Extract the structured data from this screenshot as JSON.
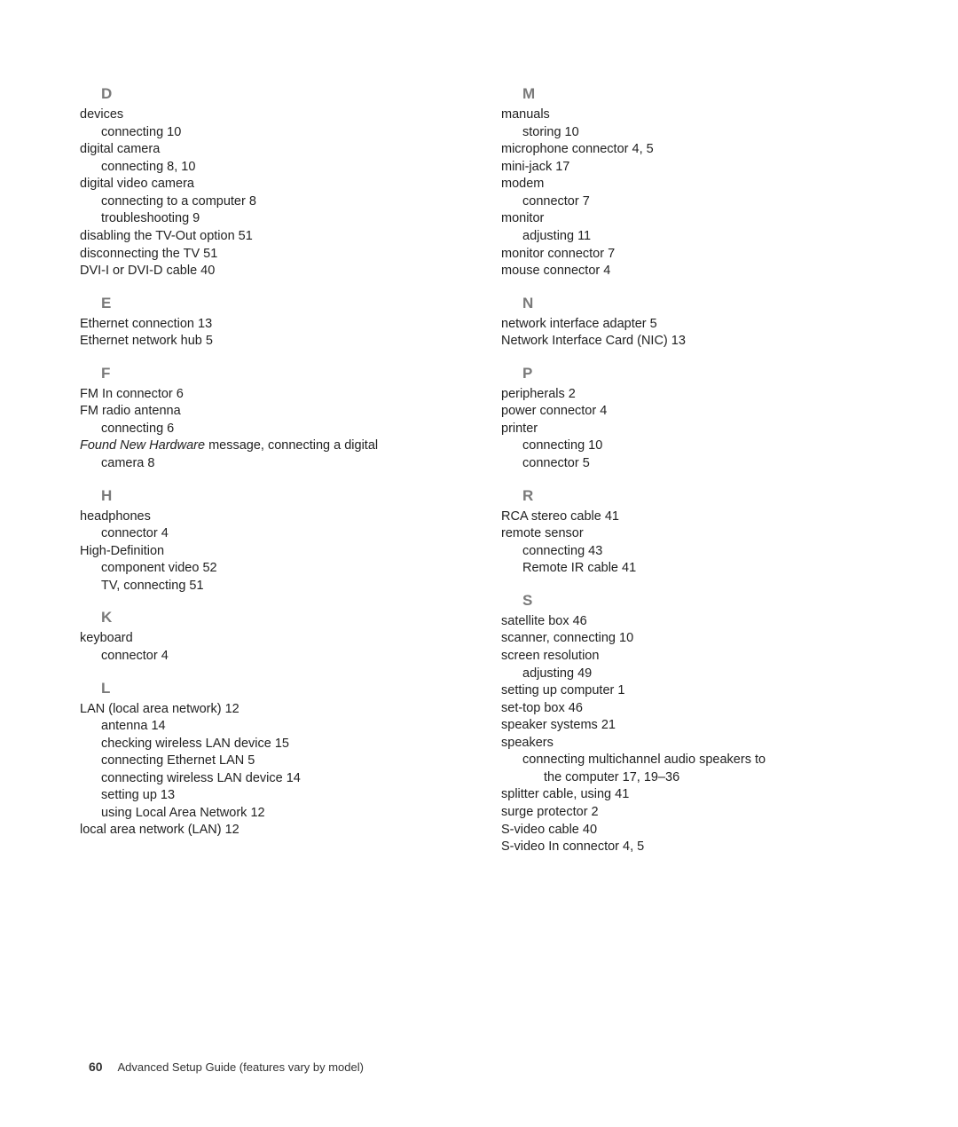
{
  "left": [
    {
      "type": "letter",
      "text": "D"
    },
    {
      "type": "entry",
      "level": 0,
      "text": "devices"
    },
    {
      "type": "entry",
      "level": 1,
      "text": "connecting 10"
    },
    {
      "type": "entry",
      "level": 0,
      "text": "digital camera"
    },
    {
      "type": "entry",
      "level": 1,
      "text": "connecting 8, 10"
    },
    {
      "type": "entry",
      "level": 0,
      "text": "digital video camera"
    },
    {
      "type": "entry",
      "level": 1,
      "text": "connecting to a computer 8"
    },
    {
      "type": "entry",
      "level": 1,
      "text": "troubleshooting 9"
    },
    {
      "type": "entry",
      "level": 0,
      "text": "disabling the TV-Out option 51"
    },
    {
      "type": "entry",
      "level": 0,
      "text": "disconnecting the TV 51"
    },
    {
      "type": "entry",
      "level": 0,
      "text": "DVI-I or DVI-D cable 40"
    },
    {
      "type": "letter",
      "text": "E"
    },
    {
      "type": "entry",
      "level": 0,
      "text": "Ethernet connection 13"
    },
    {
      "type": "entry",
      "level": 0,
      "text": "Ethernet network hub 5"
    },
    {
      "type": "letter",
      "text": "F"
    },
    {
      "type": "entry",
      "level": 0,
      "text": "FM In connector 6"
    },
    {
      "type": "entry",
      "level": 0,
      "text": "FM radio antenna"
    },
    {
      "type": "entry",
      "level": 1,
      "text": "connecting 6"
    },
    {
      "type": "entry",
      "level": 0,
      "italicPrefix": "Found New Hardware",
      "text": " message, connecting a digital"
    },
    {
      "type": "entry",
      "level": 1,
      "text": "camera 8"
    },
    {
      "type": "letter",
      "text": "H"
    },
    {
      "type": "entry",
      "level": 0,
      "text": "headphones"
    },
    {
      "type": "entry",
      "level": 1,
      "text": "connector 4"
    },
    {
      "type": "entry",
      "level": 0,
      "text": "High-Definition"
    },
    {
      "type": "entry",
      "level": 1,
      "text": "component video 52"
    },
    {
      "type": "entry",
      "level": 1,
      "text": "TV, connecting 51"
    },
    {
      "type": "letter",
      "text": "K"
    },
    {
      "type": "entry",
      "level": 0,
      "text": "keyboard"
    },
    {
      "type": "entry",
      "level": 1,
      "text": "connector 4"
    },
    {
      "type": "letter",
      "text": "L"
    },
    {
      "type": "entry",
      "level": 0,
      "text": "LAN (local area network) 12"
    },
    {
      "type": "entry",
      "level": 1,
      "text": "antenna 14"
    },
    {
      "type": "entry",
      "level": 1,
      "text": "checking wireless LAN device 15"
    },
    {
      "type": "entry",
      "level": 1,
      "text": "connecting Ethernet LAN 5"
    },
    {
      "type": "entry",
      "level": 1,
      "text": "connecting wireless LAN device 14"
    },
    {
      "type": "entry",
      "level": 1,
      "text": "setting up 13"
    },
    {
      "type": "entry",
      "level": 1,
      "text": "using Local Area Network 12"
    },
    {
      "type": "entry",
      "level": 0,
      "text": "local area network (LAN) 12"
    }
  ],
  "right": [
    {
      "type": "letter",
      "text": "M"
    },
    {
      "type": "entry",
      "level": 0,
      "text": "manuals"
    },
    {
      "type": "entry",
      "level": 1,
      "text": "storing 10"
    },
    {
      "type": "entry",
      "level": 0,
      "text": "microphone connector 4, 5"
    },
    {
      "type": "entry",
      "level": 0,
      "text": "mini-jack 17"
    },
    {
      "type": "entry",
      "level": 0,
      "text": "modem"
    },
    {
      "type": "entry",
      "level": 1,
      "text": "connector 7"
    },
    {
      "type": "entry",
      "level": 0,
      "text": "monitor"
    },
    {
      "type": "entry",
      "level": 1,
      "text": "adjusting 11"
    },
    {
      "type": "entry",
      "level": 0,
      "text": "monitor connector 7"
    },
    {
      "type": "entry",
      "level": 0,
      "text": "mouse connector 4"
    },
    {
      "type": "letter",
      "text": "N"
    },
    {
      "type": "entry",
      "level": 0,
      "text": "network interface adapter 5"
    },
    {
      "type": "entry",
      "level": 0,
      "text": "Network Interface Card (NIC) 13"
    },
    {
      "type": "letter",
      "text": "P"
    },
    {
      "type": "entry",
      "level": 0,
      "text": "peripherals 2"
    },
    {
      "type": "entry",
      "level": 0,
      "text": "power connector 4"
    },
    {
      "type": "entry",
      "level": 0,
      "text": "printer"
    },
    {
      "type": "entry",
      "level": 1,
      "text": "connecting 10"
    },
    {
      "type": "entry",
      "level": 1,
      "text": "connector 5"
    },
    {
      "type": "letter",
      "text": "R"
    },
    {
      "type": "entry",
      "level": 0,
      "text": "RCA stereo cable 41"
    },
    {
      "type": "entry",
      "level": 0,
      "text": "remote sensor"
    },
    {
      "type": "entry",
      "level": 1,
      "text": "connecting 43"
    },
    {
      "type": "entry",
      "level": 1,
      "text": "Remote IR cable 41"
    },
    {
      "type": "letter",
      "text": "S"
    },
    {
      "type": "entry",
      "level": 0,
      "text": "satellite box 46"
    },
    {
      "type": "entry",
      "level": 0,
      "text": "scanner, connecting 10"
    },
    {
      "type": "entry",
      "level": 0,
      "text": "screen resolution"
    },
    {
      "type": "entry",
      "level": 1,
      "text": "adjusting 49"
    },
    {
      "type": "entry",
      "level": 0,
      "text": "setting up computer 1"
    },
    {
      "type": "entry",
      "level": 0,
      "text": "set-top box 46"
    },
    {
      "type": "entry",
      "level": 0,
      "text": "speaker systems 21"
    },
    {
      "type": "entry",
      "level": 0,
      "text": "speakers"
    },
    {
      "type": "entry",
      "level": 1,
      "text": "connecting multichannel audio speakers to"
    },
    {
      "type": "entry",
      "level": 2,
      "text": "the computer 17, 19–36"
    },
    {
      "type": "entry",
      "level": 0,
      "text": "splitter cable, using 41"
    },
    {
      "type": "entry",
      "level": 0,
      "text": "surge protector 2"
    },
    {
      "type": "entry",
      "level": 0,
      "text": "S-video cable 40"
    },
    {
      "type": "entry",
      "level": 0,
      "text": "S-video In connector 4, 5"
    }
  ],
  "footer": {
    "page_number": "60",
    "title": "Advanced Setup Guide (features vary by model)"
  }
}
